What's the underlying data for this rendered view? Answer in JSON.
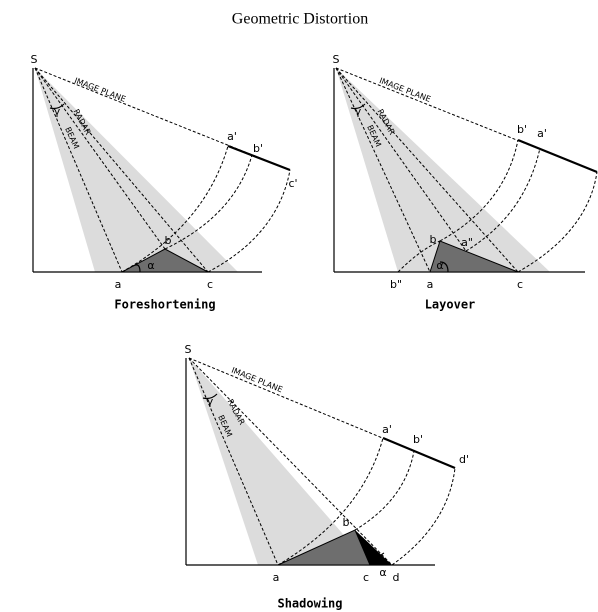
{
  "title": "Geometric Distortion",
  "panels": [
    {
      "caption": "Foreshortening",
      "labels": {
        "source": "S",
        "image_plane": "IMAGE PLANE",
        "radar": "RADAR",
        "beam": "BEAM",
        "gamma": "γ",
        "alpha": "α",
        "a": "a",
        "b": "b",
        "c": "c",
        "a_prime": "a'",
        "b_prime": "b'",
        "c_prime": "c'"
      }
    },
    {
      "caption": "Layover",
      "labels": {
        "source": "S",
        "image_plane": "IMAGE PLANE",
        "radar": "RADAR",
        "beam": "BEAM",
        "gamma": "γ",
        "alpha": "α",
        "a": "a",
        "b": "b",
        "c": "c",
        "b_prime": "b'",
        "a_prime": "a'",
        "a_double": "a\"",
        "b_double": "b\""
      }
    },
    {
      "caption": "Shadowing",
      "labels": {
        "source": "S",
        "image_plane": "IMAGE PLANE",
        "radar": "RADAR",
        "beam": "BEAM",
        "gamma": "γ",
        "alpha": "α",
        "a": "a",
        "b": "b",
        "c": "c",
        "d": "d",
        "a_prime": "a'",
        "b_prime": "b'",
        "d_prime": "d'"
      }
    }
  ]
}
